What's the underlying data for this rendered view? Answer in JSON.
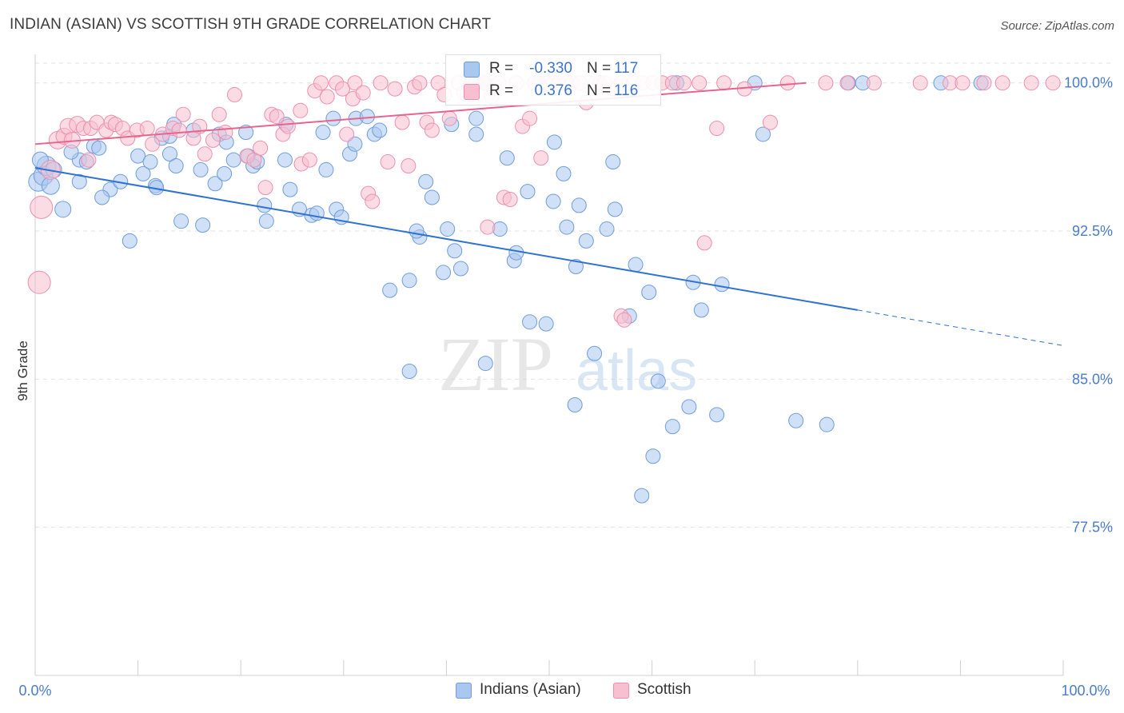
{
  "header": {
    "title": "INDIAN (ASIAN) VS SCOTTISH 9TH GRADE CORRELATION CHART",
    "source": "Source: ZipAtlas.com"
  },
  "watermark": {
    "zip": "ZIP",
    "atlas": "atlas"
  },
  "legend_top": {
    "rows": [
      {
        "r_label": "R =",
        "r_value": "-0.330",
        "n_label": "N =",
        "n_value": "117",
        "color": "#8fb3e8"
      },
      {
        "r_label": "R =",
        "r_value": "0.376",
        "n_label": "N =",
        "n_value": "116",
        "color": "#f4a7bf"
      }
    ]
  },
  "legend_bottom": {
    "items": [
      {
        "label": "Indians (Asian)",
        "color": "#8fb3e8"
      },
      {
        "label": "Scottish",
        "color": "#f4a7bf"
      }
    ]
  },
  "chart_data": {
    "type": "scatter",
    "title": "INDIAN (ASIAN) VS SCOTTISH 9TH GRADE CORRELATION CHART",
    "ylabel": "9th Grade",
    "xlabel": "",
    "xlim": [
      0,
      100
    ],
    "ylim": [
      70.0,
      101.0
    ],
    "x_tick_labels": [
      "0.0%",
      "100.0%"
    ],
    "y_ticks": [
      {
        "value": 100.0,
        "label": "100.0%"
      },
      {
        "value": 92.5,
        "label": "92.5%"
      },
      {
        "value": 85.0,
        "label": "85.0%"
      },
      {
        "value": 77.5,
        "label": "77.5%"
      }
    ],
    "grid": true,
    "legend_position": "top-center",
    "colors": {
      "blue_fill": "#a9c7ef",
      "blue_stroke": "#6f9ddc",
      "blue_line": "#2f72d1",
      "pink_fill": "#f7bfd0",
      "pink_stroke": "#ee8fb0",
      "pink_line": "#e8648e",
      "axis_text": "#4a7cc9"
    },
    "series": [
      {
        "name": "Indians (Asian)",
        "r": -0.33,
        "n": 117,
        "trend": {
          "x0": 0,
          "y0": 95.7,
          "x1": 80,
          "y1": 88.5,
          "dashed_to_x": 100,
          "dashed_to_y": 86.7
        },
        "points": [
          [
            0.3,
            95.0,
            12
          ],
          [
            0.8,
            95.3,
            12
          ],
          [
            1.1,
            95.8,
            12
          ],
          [
            1.5,
            94.8,
            11
          ],
          [
            0.5,
            96.1,
            10
          ],
          [
            1.8,
            95.6,
            10
          ],
          [
            2.7,
            93.6,
            10
          ],
          [
            4.3,
            96.1,
            9
          ],
          [
            3.5,
            96.5,
            9
          ],
          [
            5.0,
            96.0,
            9
          ],
          [
            5.7,
            96.8,
            9
          ],
          [
            6.2,
            96.7,
            9
          ],
          [
            7.3,
            94.6,
            9
          ],
          [
            8.3,
            95.0,
            9
          ],
          [
            6.5,
            94.2,
            9
          ],
          [
            4.3,
            95.0,
            9
          ],
          [
            10.5,
            95.4,
            9
          ],
          [
            11.7,
            94.8,
            9
          ],
          [
            9.2,
            92.0,
            9
          ],
          [
            10.0,
            96.3,
            9
          ],
          [
            11.2,
            96.0,
            9
          ],
          [
            12.3,
            97.2,
            9
          ],
          [
            13.1,
            97.3,
            9
          ],
          [
            13.1,
            96.4,
            9
          ],
          [
            11.8,
            94.7,
            9
          ],
          [
            13.7,
            95.8,
            9
          ],
          [
            14.2,
            93.0,
            9
          ],
          [
            15.4,
            97.6,
            9
          ],
          [
            16.1,
            95.6,
            9
          ],
          [
            16.3,
            92.8,
            9
          ],
          [
            13.5,
            97.9,
            9
          ],
          [
            17.5,
            94.9,
            9
          ],
          [
            17.9,
            97.4,
            9
          ],
          [
            18.4,
            95.4,
            9
          ],
          [
            18.6,
            97.0,
            9
          ],
          [
            19.3,
            96.1,
            9
          ],
          [
            20.5,
            97.5,
            9
          ],
          [
            20.7,
            96.3,
            9
          ],
          [
            21.2,
            95.8,
            9
          ],
          [
            21.6,
            96.0,
            9
          ],
          [
            22.3,
            93.8,
            9
          ],
          [
            22.5,
            93.0,
            9
          ],
          [
            24.4,
            97.9,
            9
          ],
          [
            24.3,
            96.1,
            9
          ],
          [
            24.8,
            94.6,
            9
          ],
          [
            25.7,
            93.6,
            9
          ],
          [
            26.9,
            93.3,
            9
          ],
          [
            27.4,
            93.4,
            9
          ],
          [
            28.0,
            97.5,
            9
          ],
          [
            28.3,
            95.6,
            9
          ],
          [
            29.0,
            98.2,
            9
          ],
          [
            29.3,
            93.6,
            9
          ],
          [
            29.8,
            93.2,
            9
          ],
          [
            30.6,
            96.4,
            9
          ],
          [
            31.1,
            96.9,
            9
          ],
          [
            31.2,
            98.2,
            9
          ],
          [
            32.3,
            98.3,
            9
          ],
          [
            33.0,
            97.4,
            9
          ],
          [
            33.5,
            97.6,
            9
          ],
          [
            34.5,
            89.5,
            9
          ],
          [
            36.4,
            90.0,
            9
          ],
          [
            36.4,
            85.4,
            9
          ],
          [
            37.4,
            92.2,
            9
          ],
          [
            37.1,
            92.5,
            9
          ],
          [
            38.0,
            95.0,
            9
          ],
          [
            38.6,
            94.2,
            9
          ],
          [
            39.7,
            90.4,
            9
          ],
          [
            40.1,
            92.6,
            9
          ],
          [
            40.8,
            91.5,
            9
          ],
          [
            40.5,
            97.9,
            9
          ],
          [
            41.4,
            90.6,
            9
          ],
          [
            42.9,
            98.2,
            9
          ],
          [
            42.9,
            97.4,
            9
          ],
          [
            43.8,
            85.8,
            9
          ],
          [
            43.7,
            100.0,
            9
          ],
          [
            45.2,
            92.6,
            9
          ],
          [
            45.9,
            96.2,
            9
          ],
          [
            46.6,
            91.0,
            9
          ],
          [
            46.8,
            91.4,
            9
          ],
          [
            47.9,
            94.5,
            9
          ],
          [
            48.1,
            87.9,
            9
          ],
          [
            49.0,
            100.0,
            9
          ],
          [
            49.7,
            87.8,
            9
          ],
          [
            50.4,
            94.0,
            9
          ],
          [
            50.5,
            97.0,
            9
          ],
          [
            51.4,
            95.4,
            9
          ],
          [
            51.7,
            92.7,
            9
          ],
          [
            52.5,
            83.7,
            9
          ],
          [
            52.6,
            90.7,
            9
          ],
          [
            52.9,
            93.8,
            9
          ],
          [
            53.6,
            92.0,
            9
          ],
          [
            54.4,
            86.3,
            9
          ],
          [
            54.9,
            100.0,
            9
          ],
          [
            55.6,
            92.6,
            9
          ],
          [
            56.2,
            96.0,
            9
          ],
          [
            56.4,
            93.6,
            9
          ],
          [
            57.8,
            88.2,
            9
          ],
          [
            58.4,
            90.8,
            9
          ],
          [
            59.0,
            79.1,
            9
          ],
          [
            59.7,
            89.4,
            9
          ],
          [
            60.1,
            81.1,
            9
          ],
          [
            60.6,
            84.9,
            9
          ],
          [
            62.0,
            82.6,
            9
          ],
          [
            62.4,
            100.0,
            9
          ],
          [
            63.6,
            83.6,
            9
          ],
          [
            64.0,
            89.9,
            9
          ],
          [
            64.8,
            88.5,
            9
          ],
          [
            66.3,
            83.2,
            9
          ],
          [
            66.8,
            89.8,
            9
          ],
          [
            70.0,
            100.0,
            9
          ],
          [
            70.8,
            97.4,
            9
          ],
          [
            74.0,
            82.9,
            9
          ],
          [
            77.0,
            82.7,
            9
          ],
          [
            88.1,
            100.0,
            9
          ],
          [
            92.0,
            100.0,
            9
          ],
          [
            80.5,
            100.0,
            9
          ],
          [
            79.1,
            100.0,
            9
          ]
        ]
      },
      {
        "name": "Scottish",
        "r": 0.376,
        "n": 116,
        "trend": {
          "x0": 0,
          "y0": 96.9,
          "x1": 75,
          "y1": 100.0
        },
        "points": [
          [
            0.6,
            93.7,
            14
          ],
          [
            0.4,
            89.9,
            14
          ],
          [
            1.5,
            95.6,
            12
          ],
          [
            2.2,
            97.1,
            11
          ],
          [
            2.8,
            97.3,
            10
          ],
          [
            3.2,
            97.8,
            10
          ],
          [
            3.6,
            97.1,
            10
          ],
          [
            4.1,
            97.9,
            10
          ],
          [
            4.7,
            97.7,
            9
          ],
          [
            5.2,
            96.1,
            9
          ],
          [
            5.4,
            97.7,
            9
          ],
          [
            6.0,
            98.0,
            9
          ],
          [
            6.9,
            97.6,
            9
          ],
          [
            7.4,
            98.0,
            9
          ],
          [
            7.8,
            97.9,
            9
          ],
          [
            8.5,
            97.7,
            9
          ],
          [
            9.0,
            97.2,
            9
          ],
          [
            9.9,
            97.6,
            9
          ],
          [
            10.9,
            97.7,
            9
          ],
          [
            11.4,
            96.9,
            9
          ],
          [
            12.4,
            97.4,
            9
          ],
          [
            13.4,
            97.7,
            9
          ],
          [
            14.0,
            97.6,
            9
          ],
          [
            14.4,
            98.4,
            9
          ],
          [
            15.4,
            97.2,
            9
          ],
          [
            16.0,
            97.8,
            9
          ],
          [
            16.5,
            96.4,
            9
          ],
          [
            17.3,
            97.1,
            9
          ],
          [
            17.9,
            98.4,
            9
          ],
          [
            18.5,
            97.5,
            9
          ],
          [
            19.4,
            99.4,
            9
          ],
          [
            20.6,
            96.3,
            9
          ],
          [
            21.3,
            96.1,
            9
          ],
          [
            21.9,
            96.7,
            9
          ],
          [
            22.4,
            94.7,
            9
          ],
          [
            23.0,
            98.4,
            9
          ],
          [
            23.5,
            98.3,
            9
          ],
          [
            24.1,
            97.4,
            9
          ],
          [
            24.6,
            97.8,
            9
          ],
          [
            25.8,
            98.6,
            9
          ],
          [
            25.9,
            95.9,
            9
          ],
          [
            26.7,
            96.1,
            9
          ],
          [
            27.2,
            99.6,
            9
          ],
          [
            27.8,
            100.0,
            9
          ],
          [
            28.4,
            99.3,
            9
          ],
          [
            29.3,
            100.0,
            9
          ],
          [
            29.9,
            99.7,
            9
          ],
          [
            30.3,
            97.4,
            9
          ],
          [
            30.9,
            99.2,
            9
          ],
          [
            31.1,
            100.0,
            9
          ],
          [
            31.9,
            99.5,
            9
          ],
          [
            32.4,
            94.4,
            9
          ],
          [
            32.8,
            94.0,
            9
          ],
          [
            33.6,
            100.0,
            9
          ],
          [
            34.3,
            96.0,
            9
          ],
          [
            35.0,
            99.7,
            9
          ],
          [
            35.7,
            98.0,
            9
          ],
          [
            36.3,
            95.8,
            9
          ],
          [
            36.9,
            99.8,
            9
          ],
          [
            37.4,
            100.0,
            9
          ],
          [
            38.1,
            98.0,
            9
          ],
          [
            38.6,
            97.6,
            9
          ],
          [
            39.2,
            100.0,
            9
          ],
          [
            39.8,
            99.4,
            9
          ],
          [
            40.3,
            98.2,
            9
          ],
          [
            41.2,
            100.0,
            9
          ],
          [
            41.7,
            99.5,
            9
          ],
          [
            42.4,
            100.0,
            9
          ],
          [
            42.8,
            100.0,
            9
          ],
          [
            43.7,
            100.0,
            9
          ],
          [
            44.0,
            92.7,
            9
          ],
          [
            44.4,
            99.3,
            9
          ],
          [
            45.1,
            100.0,
            9
          ],
          [
            45.6,
            94.2,
            9
          ],
          [
            46.2,
            94.1,
            9
          ],
          [
            46.8,
            100.0,
            9
          ],
          [
            47.4,
            97.8,
            9
          ],
          [
            48.1,
            98.2,
            9
          ],
          [
            48.6,
            100.0,
            9
          ],
          [
            49.2,
            96.2,
            9
          ],
          [
            49.7,
            100.0,
            9
          ],
          [
            50.4,
            100.0,
            9
          ],
          [
            50.9,
            100.0,
            9
          ],
          [
            51.7,
            100.0,
            9
          ],
          [
            52.2,
            100.0,
            9
          ],
          [
            53.0,
            100.0,
            9
          ],
          [
            53.6,
            99.0,
            9
          ],
          [
            54.5,
            100.0,
            9
          ],
          [
            55.4,
            100.0,
            9
          ],
          [
            56.2,
            99.7,
            9
          ],
          [
            57.0,
            100.0,
            9
          ],
          [
            58.2,
            100.0,
            9
          ],
          [
            59.1,
            100.0,
            9
          ],
          [
            60.1,
            100.0,
            9
          ],
          [
            61.0,
            100.0,
            9
          ],
          [
            62.0,
            100.0,
            9
          ],
          [
            63.1,
            100.0,
            9
          ],
          [
            64.6,
            100.0,
            9
          ],
          [
            66.3,
            97.7,
            9
          ],
          [
            67.0,
            100.0,
            9
          ],
          [
            69.0,
            99.7,
            9
          ],
          [
            71.5,
            98.0,
            9
          ],
          [
            73.2,
            100.0,
            9
          ],
          [
            76.9,
            100.0,
            9
          ],
          [
            79.0,
            100.0,
            9
          ],
          [
            81.6,
            100.0,
            9
          ],
          [
            86.1,
            100.0,
            9
          ],
          [
            89.0,
            100.0,
            9
          ],
          [
            90.2,
            100.0,
            9
          ],
          [
            92.3,
            100.0,
            9
          ],
          [
            94.1,
            100.0,
            9
          ],
          [
            96.9,
            100.0,
            9
          ],
          [
            99.0,
            100.0,
            9
          ],
          [
            57.0,
            88.2,
            9
          ],
          [
            57.3,
            88.0,
            9
          ],
          [
            65.1,
            91.9,
            9
          ]
        ]
      }
    ]
  }
}
